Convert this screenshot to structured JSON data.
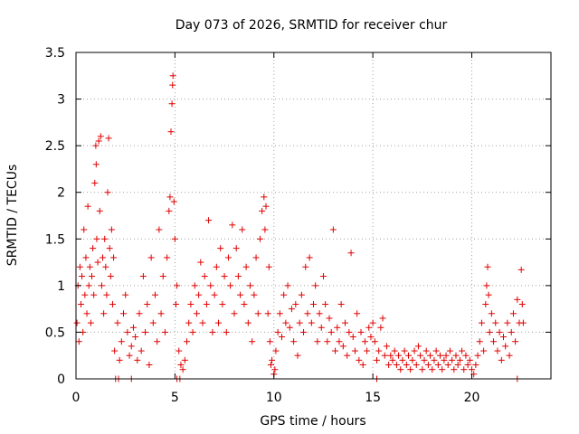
{
  "chart_data": {
    "type": "scatter",
    "title": "Day 073 of 2026, SRMTID for receiver chur",
    "xlabel": "GPS time / hours",
    "ylabel": "SRMTID / TECUs",
    "xlim": [
      0,
      24
    ],
    "ylim": [
      0,
      3.5
    ],
    "xticks": [
      "0",
      "5",
      "10",
      "15",
      "20"
    ],
    "yticks": [
      "0",
      "0.5",
      "1",
      "1.5",
      "2",
      "2.5",
      "3",
      "3.5"
    ],
    "grid": true,
    "marker": "+",
    "color": "#e00000",
    "series": [
      {
        "name": "SRMTID",
        "points": [
          [
            0.05,
            0.6
          ],
          [
            0.1,
            1.0
          ],
          [
            0.15,
            0.4
          ],
          [
            0.2,
            1.2
          ],
          [
            0.25,
            0.8
          ],
          [
            0.3,
            1.1
          ],
          [
            0.35,
            0.5
          ],
          [
            0.4,
            1.6
          ],
          [
            0.45,
            0.9
          ],
          [
            0.5,
            1.3
          ],
          [
            0.55,
            0.7
          ],
          [
            0.6,
            1.85
          ],
          [
            0.65,
            1.0
          ],
          [
            0.7,
            1.2
          ],
          [
            0.75,
            0.6
          ],
          [
            0.8,
            1.1
          ],
          [
            0.85,
            1.4
          ],
          [
            0.9,
            0.9
          ],
          [
            0.95,
            2.1
          ],
          [
            1.0,
            2.5
          ],
          [
            1.02,
            2.3
          ],
          [
            1.05,
            1.5
          ],
          [
            1.1,
            1.25
          ],
          [
            1.15,
            2.55
          ],
          [
            1.2,
            1.8
          ],
          [
            1.25,
            2.6
          ],
          [
            1.3,
            1.0
          ],
          [
            1.35,
            1.3
          ],
          [
            1.4,
            0.7
          ],
          [
            1.45,
            1.5
          ],
          [
            1.5,
            1.2
          ],
          [
            1.55,
            0.9
          ],
          [
            1.6,
            2.0
          ],
          [
            1.65,
            2.58
          ],
          [
            1.7,
            1.4
          ],
          [
            1.75,
            1.1
          ],
          [
            1.8,
            1.6
          ],
          [
            1.85,
            0.8
          ],
          [
            1.9,
            1.3
          ],
          [
            1.95,
            0.3
          ],
          [
            2.1,
            0.6
          ],
          [
            2.2,
            0.2
          ],
          [
            2.3,
            0.4
          ],
          [
            2.4,
            0.7
          ],
          [
            2.5,
            0.9
          ],
          [
            2.6,
            0.5
          ],
          [
            2.7,
            0.25
          ],
          [
            2.8,
            0.35
          ],
          [
            2.9,
            0.55
          ],
          [
            3.0,
            0.45
          ],
          [
            3.1,
            0.2
          ],
          [
            3.2,
            0.7
          ],
          [
            3.3,
            0.3
          ],
          [
            3.4,
            1.1
          ],
          [
            3.5,
            0.5
          ],
          [
            3.6,
            0.8
          ],
          [
            3.7,
            0.15
          ],
          [
            3.8,
            1.3
          ],
          [
            3.9,
            0.6
          ],
          [
            4.0,
            0.9
          ],
          [
            4.1,
            0.4
          ],
          [
            4.2,
            1.6
          ],
          [
            4.3,
            0.7
          ],
          [
            4.4,
            1.1
          ],
          [
            4.5,
            0.5
          ],
          [
            4.6,
            1.3
          ],
          [
            4.7,
            1.8
          ],
          [
            4.75,
            1.95
          ],
          [
            4.8,
            2.65
          ],
          [
            4.85,
            2.95
          ],
          [
            4.88,
            3.15
          ],
          [
            4.9,
            3.25
          ],
          [
            4.95,
            1.9
          ],
          [
            5.0,
            1.5
          ],
          [
            5.05,
            0.8
          ],
          [
            5.1,
            1.0
          ],
          [
            5.2,
            0.3
          ],
          [
            5.3,
            0.15
          ],
          [
            5.4,
            0.1
          ],
          [
            5.5,
            0.2
          ],
          [
            5.6,
            0.4
          ],
          [
            5.7,
            0.6
          ],
          [
            5.8,
            0.8
          ],
          [
            5.9,
            0.5
          ],
          [
            6.0,
            1.0
          ],
          [
            6.1,
            0.7
          ],
          [
            6.2,
            0.9
          ],
          [
            6.3,
            1.25
          ],
          [
            6.4,
            0.6
          ],
          [
            6.5,
            1.1
          ],
          [
            6.6,
            0.8
          ],
          [
            6.7,
            1.7
          ],
          [
            6.8,
            1.0
          ],
          [
            6.9,
            0.5
          ],
          [
            7.0,
            0.9
          ],
          [
            7.1,
            1.2
          ],
          [
            7.2,
            0.6
          ],
          [
            7.3,
            1.4
          ],
          [
            7.4,
            0.8
          ],
          [
            7.5,
            1.1
          ],
          [
            7.6,
            0.5
          ],
          [
            7.7,
            1.3
          ],
          [
            7.8,
            1.0
          ],
          [
            7.9,
            1.65
          ],
          [
            8.0,
            0.7
          ],
          [
            8.1,
            1.4
          ],
          [
            8.2,
            1.1
          ],
          [
            8.3,
            0.9
          ],
          [
            8.4,
            1.6
          ],
          [
            8.5,
            0.8
          ],
          [
            8.6,
            1.2
          ],
          [
            8.7,
            0.6
          ],
          [
            8.8,
            1.0
          ],
          [
            8.9,
            0.4
          ],
          [
            9.0,
            0.9
          ],
          [
            9.1,
            1.3
          ],
          [
            9.2,
            0.7
          ],
          [
            9.3,
            1.5
          ],
          [
            9.4,
            1.8
          ],
          [
            9.5,
            1.95
          ],
          [
            9.55,
            1.6
          ],
          [
            9.6,
            1.85
          ],
          [
            9.7,
            0.7
          ],
          [
            9.75,
            1.2
          ],
          [
            9.8,
            0.4
          ],
          [
            9.85,
            0.15
          ],
          [
            9.9,
            0.2
          ],
          [
            10.0,
            0.05
          ],
          [
            10.05,
            0.1
          ],
          [
            10.1,
            0.3
          ],
          [
            10.2,
            0.5
          ],
          [
            10.3,
            0.7
          ],
          [
            10.4,
            0.45
          ],
          [
            10.5,
            0.9
          ],
          [
            10.6,
            0.6
          ],
          [
            10.7,
            1.0
          ],
          [
            10.8,
            0.55
          ],
          [
            10.9,
            0.75
          ],
          [
            11.0,
            0.4
          ],
          [
            11.1,
            0.8
          ],
          [
            11.2,
            0.25
          ],
          [
            11.3,
            0.6
          ],
          [
            11.4,
            0.9
          ],
          [
            11.5,
            0.5
          ],
          [
            11.6,
            1.2
          ],
          [
            11.7,
            0.7
          ],
          [
            11.8,
            1.3
          ],
          [
            11.9,
            0.6
          ],
          [
            12.0,
            0.8
          ],
          [
            12.1,
            1.0
          ],
          [
            12.2,
            0.4
          ],
          [
            12.3,
            0.7
          ],
          [
            12.4,
            0.55
          ],
          [
            12.5,
            1.1
          ],
          [
            12.6,
            0.8
          ],
          [
            12.7,
            0.4
          ],
          [
            12.8,
            0.65
          ],
          [
            12.9,
            0.5
          ],
          [
            13.0,
            1.6
          ],
          [
            13.1,
            0.3
          ],
          [
            13.2,
            0.55
          ],
          [
            13.3,
            0.4
          ],
          [
            13.4,
            0.8
          ],
          [
            13.5,
            0.35
          ],
          [
            13.6,
            0.6
          ],
          [
            13.7,
            0.25
          ],
          [
            13.8,
            0.5
          ],
          [
            13.9,
            1.35
          ],
          [
            14.0,
            0.45
          ],
          [
            14.1,
            0.3
          ],
          [
            14.2,
            0.7
          ],
          [
            14.3,
            0.2
          ],
          [
            14.4,
            0.5
          ],
          [
            14.5,
            0.15
          ],
          [
            14.6,
            0.4
          ],
          [
            14.7,
            0.3
          ],
          [
            14.8,
            0.55
          ],
          [
            14.9,
            0.45
          ],
          [
            15.0,
            0.6
          ],
          [
            15.1,
            0.4
          ],
          [
            15.2,
            0.2
          ],
          [
            15.3,
            0.3
          ],
          [
            15.4,
            0.55
          ],
          [
            15.5,
            0.65
          ],
          [
            15.6,
            0.25
          ],
          [
            15.7,
            0.35
          ],
          [
            15.8,
            0.15
          ],
          [
            15.9,
            0.25
          ],
          [
            16.0,
            0.2
          ],
          [
            16.1,
            0.3
          ],
          [
            16.2,
            0.15
          ],
          [
            16.3,
            0.25
          ],
          [
            16.4,
            0.1
          ],
          [
            16.5,
            0.2
          ],
          [
            16.6,
            0.3
          ],
          [
            16.7,
            0.15
          ],
          [
            16.8,
            0.25
          ],
          [
            16.9,
            0.1
          ],
          [
            17.0,
            0.2
          ],
          [
            17.1,
            0.3
          ],
          [
            17.2,
            0.15
          ],
          [
            17.3,
            0.35
          ],
          [
            17.4,
            0.25
          ],
          [
            17.5,
            0.1
          ],
          [
            17.6,
            0.2
          ],
          [
            17.7,
            0.3
          ],
          [
            17.8,
            0.15
          ],
          [
            17.9,
            0.25
          ],
          [
            18.0,
            0.1
          ],
          [
            18.1,
            0.2
          ],
          [
            18.2,
            0.3
          ],
          [
            18.3,
            0.15
          ],
          [
            18.4,
            0.25
          ],
          [
            18.5,
            0.1
          ],
          [
            18.6,
            0.2
          ],
          [
            18.7,
            0.25
          ],
          [
            18.8,
            0.15
          ],
          [
            18.9,
            0.3
          ],
          [
            19.0,
            0.2
          ],
          [
            19.1,
            0.1
          ],
          [
            19.2,
            0.25
          ],
          [
            19.3,
            0.15
          ],
          [
            19.4,
            0.2
          ],
          [
            19.5,
            0.3
          ],
          [
            19.6,
            0.1
          ],
          [
            19.7,
            0.25
          ],
          [
            19.8,
            0.15
          ],
          [
            19.9,
            0.2
          ],
          [
            20.0,
            0.1
          ],
          [
            20.1,
            0.05
          ],
          [
            20.2,
            0.15
          ],
          [
            20.3,
            0.25
          ],
          [
            20.4,
            0.4
          ],
          [
            20.5,
            0.6
          ],
          [
            20.6,
            0.3
          ],
          [
            20.7,
            0.8
          ],
          [
            20.75,
            1.0
          ],
          [
            20.8,
            1.2
          ],
          [
            20.85,
            0.9
          ],
          [
            20.9,
            0.5
          ],
          [
            21.0,
            0.7
          ],
          [
            21.1,
            0.4
          ],
          [
            21.2,
            0.6
          ],
          [
            21.3,
            0.3
          ],
          [
            21.4,
            0.5
          ],
          [
            21.5,
            0.2
          ],
          [
            21.6,
            0.45
          ],
          [
            21.7,
            0.35
          ],
          [
            21.8,
            0.6
          ],
          [
            21.9,
            0.25
          ],
          [
            22.0,
            0.5
          ],
          [
            22.1,
            0.7
          ],
          [
            22.2,
            0.4
          ],
          [
            22.3,
            0.85
          ],
          [
            22.4,
            0.6
          ],
          [
            22.5,
            1.17
          ],
          [
            22.55,
            0.8
          ],
          [
            22.6,
            0.6
          ]
        ]
      }
    ],
    "zero_markers_x": [
      2.0,
      2.15,
      2.8,
      5.1,
      5.25,
      15.2,
      22.3
    ]
  }
}
